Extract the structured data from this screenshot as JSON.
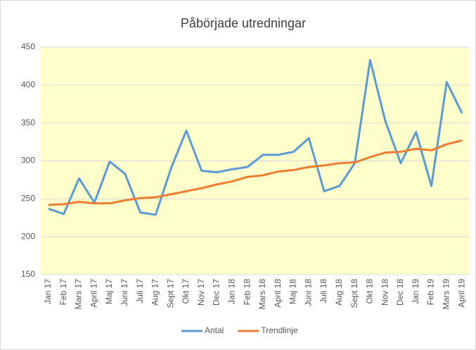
{
  "chart_data": {
    "type": "line",
    "title": "Påbörjade utredningar",
    "categories": [
      "Jan 17",
      "Feb 17",
      "Mars 17",
      "April 17",
      "Maj 17",
      "Juni 17",
      "Juli 17",
      "Aug 17",
      "Sept 17",
      "Okt 17",
      "Nov 17",
      "Dec 17",
      "Jan 18",
      "Feb 18",
      "Mars 18",
      "April 18",
      "Maj 18",
      "Juni 18",
      "Juli 18",
      "Aug 18",
      "Sept 18",
      "Okt 18",
      "Nov 18",
      "Dec 18",
      "Jan 19",
      "Feb 19",
      "Mars 19",
      "April 19"
    ],
    "series": [
      {
        "name": "Antal",
        "color": "#5b9bd5",
        "values": [
          237,
          230,
          277,
          245,
          299,
          283,
          232,
          229,
          290,
          340,
          287,
          285,
          289,
          292,
          308,
          308,
          312,
          330,
          260,
          267,
          297,
          433,
          352,
          297,
          338,
          267,
          404,
          363
        ]
      },
      {
        "name": "Trendlinje",
        "color": "#ed7d31",
        "values": [
          242,
          243,
          246,
          244,
          244,
          248,
          251,
          252,
          256,
          260,
          264,
          269,
          273,
          279,
          281,
          286,
          288,
          292,
          294,
          297,
          298,
          305,
          311,
          312,
          316,
          314,
          322,
          327
        ]
      }
    ],
    "ylim": [
      150,
      450
    ],
    "yticks": [
      150,
      200,
      250,
      300,
      350,
      400,
      450
    ],
    "grid": true,
    "legend": "bottom",
    "plot_background": "#ffffcc"
  }
}
